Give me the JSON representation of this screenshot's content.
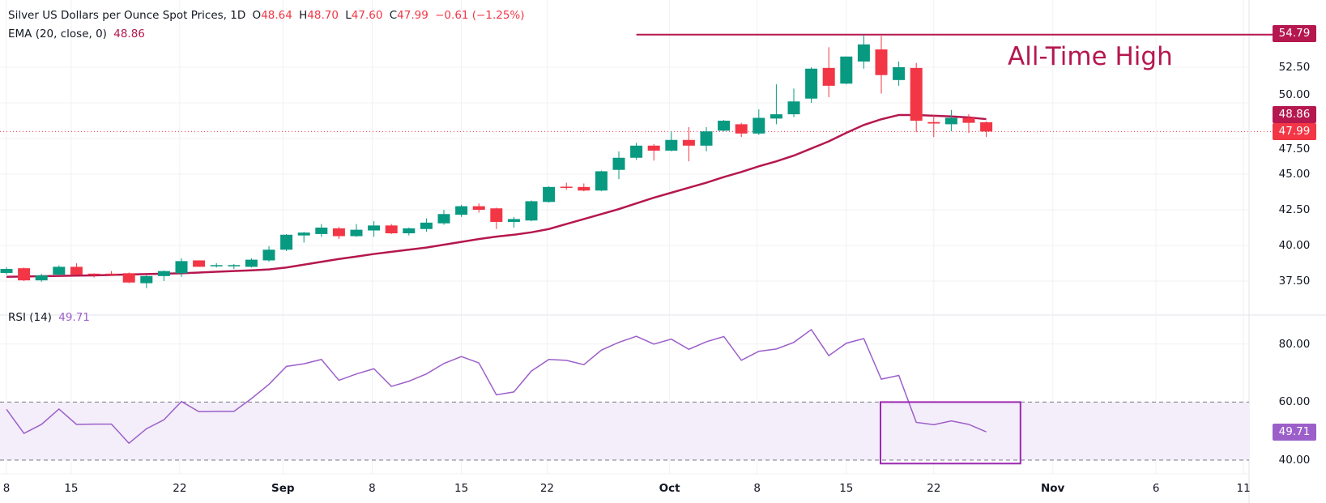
{
  "header": {
    "title": "Silver US Dollars per Ounce Spot Prices, 1D",
    "o_label": "O",
    "o": "48.64",
    "h_label": "H",
    "h": "48.70",
    "l_label": "L",
    "l": "47.60",
    "c_label": "C",
    "c": "47.99",
    "change": "−0.61 (−1.25%)"
  },
  "ema_legend": {
    "label": "EMA (20, close, 0)",
    "value": "48.86"
  },
  "rsi_legend": {
    "label": "RSI (14)",
    "value": "49.71"
  },
  "annotation": {
    "text": "All-Time High",
    "level": 54.79,
    "level_label": "54.79"
  },
  "price_tags": {
    "ema": "48.86",
    "last": "47.99",
    "rsi": "49.71"
  },
  "colors": {
    "up": "#089981",
    "down": "#f23645",
    "ema": "#b5174f",
    "rsi": "#9c5fc9",
    "rsi_band": "#f3eefa",
    "annotation_box": "#9c27b0",
    "grid": "#f0f1f3"
  },
  "chart_data": {
    "type": "candlestick",
    "title": "Silver US Dollars per Ounce Spot Prices, 1D",
    "x_ticks": [
      "8",
      "15",
      "22",
      "Sep",
      "8",
      "15",
      "22",
      "Oct",
      "8",
      "15",
      "22",
      "Nov",
      "6",
      "11"
    ],
    "y_ticks": [
      "52.50",
      "50.00",
      "47.50",
      "45.00",
      "42.50",
      "40.00",
      "37.50"
    ],
    "ylim": [
      36.2,
      56.3
    ],
    "grid": true,
    "ohlc": [
      [
        38.07,
        38.47,
        37.95,
        38.35
      ],
      [
        38.4,
        38.45,
        37.5,
        37.55
      ],
      [
        37.55,
        38.0,
        37.45,
        37.9
      ],
      [
        37.95,
        38.6,
        37.9,
        38.5
      ],
      [
        38.5,
        38.75,
        37.95,
        37.95
      ],
      [
        38.02,
        38.05,
        37.75,
        37.98
      ],
      [
        38.02,
        38.2,
        37.95,
        37.98
      ],
      [
        38.05,
        38.1,
        37.35,
        37.4
      ],
      [
        37.35,
        37.9,
        37.0,
        37.85
      ],
      [
        37.85,
        38.25,
        37.5,
        38.2
      ],
      [
        38.05,
        39.1,
        37.8,
        38.9
      ],
      [
        38.95,
        38.95,
        38.5,
        38.5
      ],
      [
        38.58,
        38.75,
        38.45,
        38.62
      ],
      [
        38.58,
        38.7,
        38.35,
        38.62
      ],
      [
        38.5,
        39.1,
        38.45,
        39.0
      ],
      [
        38.95,
        39.95,
        38.85,
        39.7
      ],
      [
        39.7,
        40.8,
        39.6,
        40.75
      ],
      [
        40.7,
        40.95,
        40.2,
        40.9
      ],
      [
        40.8,
        41.5,
        40.6,
        41.25
      ],
      [
        41.2,
        41.3,
        40.45,
        40.65
      ],
      [
        40.65,
        41.5,
        40.6,
        41.1
      ],
      [
        41.05,
        41.7,
        40.6,
        41.4
      ],
      [
        41.4,
        41.5,
        40.8,
        40.85
      ],
      [
        40.85,
        41.25,
        40.7,
        41.2
      ],
      [
        41.15,
        41.9,
        40.95,
        41.6
      ],
      [
        41.55,
        42.5,
        41.45,
        42.2
      ],
      [
        42.15,
        42.85,
        42.0,
        42.75
      ],
      [
        42.75,
        42.95,
        42.3,
        42.5
      ],
      [
        42.6,
        42.65,
        41.15,
        41.65
      ],
      [
        41.65,
        42.0,
        41.25,
        41.85
      ],
      [
        41.75,
        43.15,
        41.7,
        43.1
      ],
      [
        43.05,
        44.15,
        43.0,
        44.1
      ],
      [
        44.12,
        44.4,
        43.9,
        44.08
      ],
      [
        44.1,
        44.35,
        43.8,
        43.85
      ],
      [
        43.85,
        45.25,
        43.8,
        45.2
      ],
      [
        45.3,
        46.6,
        44.65,
        46.15
      ],
      [
        46.15,
        47.2,
        46.0,
        47.0
      ],
      [
        47.0,
        47.1,
        45.95,
        46.65
      ],
      [
        46.65,
        48.0,
        46.6,
        47.4
      ],
      [
        47.4,
        48.3,
        45.9,
        47.0
      ],
      [
        47.0,
        48.3,
        46.6,
        48.0
      ],
      [
        48.05,
        48.8,
        48.0,
        48.75
      ],
      [
        48.5,
        48.6,
        47.6,
        47.85
      ],
      [
        47.85,
        49.55,
        47.75,
        48.95
      ],
      [
        48.9,
        51.3,
        48.5,
        49.2
      ],
      [
        49.2,
        51.0,
        49.0,
        50.1
      ],
      [
        50.3,
        52.5,
        50.0,
        52.4
      ],
      [
        52.45,
        53.9,
        50.4,
        51.2
      ],
      [
        51.35,
        53.25,
        51.3,
        53.25
      ],
      [
        52.9,
        54.79,
        52.4,
        54.1
      ],
      [
        53.75,
        54.7,
        50.65,
        51.95
      ],
      [
        51.6,
        52.9,
        51.2,
        52.5
      ],
      [
        52.45,
        52.8,
        47.95,
        48.75
      ],
      [
        48.65,
        49.15,
        47.6,
        48.55
      ],
      [
        48.5,
        49.5,
        48.0,
        48.95
      ],
      [
        48.95,
        49.2,
        47.9,
        48.6
      ],
      [
        48.64,
        48.7,
        47.6,
        47.99
      ]
    ],
    "ema": [
      37.8,
      37.82,
      37.84,
      37.86,
      37.88,
      37.9,
      37.93,
      37.96,
      37.99,
      38.02,
      38.05,
      38.1,
      38.15,
      38.2,
      38.25,
      38.32,
      38.45,
      38.65,
      38.85,
      39.05,
      39.22,
      39.4,
      39.55,
      39.7,
      39.85,
      40.05,
      40.25,
      40.45,
      40.62,
      40.75,
      40.92,
      41.15,
      41.5,
      41.85,
      42.2,
      42.55,
      42.95,
      43.35,
      43.7,
      44.05,
      44.4,
      44.8,
      45.15,
      45.55,
      45.9,
      46.3,
      46.8,
      47.3,
      47.9,
      48.45,
      48.85,
      49.15,
      49.15,
      49.1,
      49.05,
      48.98,
      48.86
    ],
    "last_close": 47.99,
    "rsi": {
      "y_ticks": [
        "80.00",
        "60.00",
        "40.00"
      ],
      "band": [
        40,
        60
      ],
      "values": [
        57.5,
        49.2,
        52.3,
        57.6,
        52.3,
        52.4,
        52.4,
        45.8,
        50.8,
        53.9,
        60.2,
        56.7,
        56.8,
        56.8,
        61.2,
        66.1,
        72.3,
        73.2,
        74.7,
        67.5,
        69.7,
        71.5,
        65.4,
        67.2,
        69.7,
        73.3,
        75.7,
        73.5,
        62.5,
        63.5,
        70.7,
        74.7,
        74.4,
        72.9,
        77.9,
        80.6,
        82.7,
        80.0,
        81.7,
        78.2,
        80.8,
        82.6,
        74.4,
        77.5,
        78.3,
        80.6,
        85.0,
        76.0,
        80.3,
        81.9,
        67.9,
        69.2,
        53.0,
        52.2,
        53.5,
        52.3,
        49.71
      ],
      "highlight_box": {
        "x_from_bar": 50,
        "x_to_bar": 58,
        "y_range": [
          38.8,
          60
        ]
      }
    }
  }
}
